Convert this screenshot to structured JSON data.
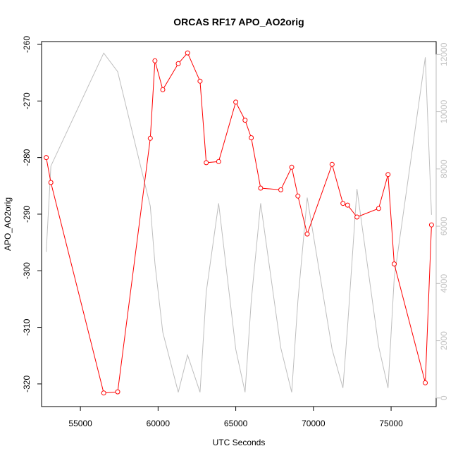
{
  "chart_data": {
    "type": "line",
    "title": "ORCAS RF17 APO_AO2orig",
    "xlabel": "UTC Seconds",
    "ylabel": "APO_AO2orig",
    "xlim": [
      52500,
      77900
    ],
    "ylim": [
      -324.0,
      -259.5
    ],
    "y2lim": [
      -300,
      12450
    ],
    "x_ticks": [
      55000,
      60000,
      65000,
      70000,
      75000
    ],
    "x_tick_labels": [
      "55000",
      "60000",
      "65000",
      "70000",
      "75000"
    ],
    "y_ticks": [
      -320,
      -310,
      -300,
      -290,
      -280,
      -270,
      -260
    ],
    "y_tick_labels": [
      "-320",
      "-310",
      "-300",
      "-290",
      "-280",
      "-270",
      "-260"
    ],
    "y2_ticks": [
      0,
      2000,
      4000,
      6000,
      8000,
      10000,
      12000
    ],
    "y2_tick_labels": [
      "0",
      "2000",
      "4000",
      "6000",
      "8000",
      "10000",
      "12000"
    ],
    "grid": false,
    "legend": "none",
    "series": [
      {
        "axis": "left",
        "color": "#ff0000",
        "marker": "open-circle",
        "x": [
          52800,
          53100,
          56500,
          57400,
          59500,
          59800,
          60300,
          61300,
          61900,
          62700,
          63100,
          63900,
          65000,
          65600,
          66000,
          66600,
          67900,
          68600,
          69000,
          69600,
          71200,
          71900,
          72200,
          72800,
          74200,
          74800,
          75200,
          77200,
          77600
        ],
        "y": [
          -280.0,
          -284.4,
          -321.6,
          -321.4,
          -276.6,
          -262.9,
          -268.0,
          -263.4,
          -261.5,
          -266.5,
          -280.9,
          -280.7,
          -270.2,
          -273.4,
          -276.5,
          -285.4,
          -285.7,
          -281.7,
          -286.8,
          -293.5,
          -281.2,
          -288.1,
          -288.4,
          -290.5,
          -289.0,
          -283.0,
          -298.8,
          -319.8,
          -291.9
        ]
      },
      {
        "axis": "right",
        "color": "#bebebe",
        "marker": "none",
        "x": [
          52800,
          53100,
          56500,
          57400,
          59500,
          59800,
          60300,
          61300,
          61900,
          62700,
          63100,
          63900,
          65000,
          65600,
          66000,
          66600,
          67900,
          68600,
          69000,
          69600,
          71200,
          71900,
          72200,
          72800,
          74200,
          74800,
          75200,
          77200,
          77600
        ],
        "y": [
          5100,
          8100,
          12050,
          11400,
          6700,
          4700,
          2300,
          200,
          1500,
          200,
          3700,
          6800,
          1700,
          200,
          3400,
          6800,
          1750,
          200,
          3400,
          7000,
          1700,
          350,
          2500,
          7300,
          1800,
          350,
          4200,
          11900,
          6400
        ]
      }
    ]
  }
}
